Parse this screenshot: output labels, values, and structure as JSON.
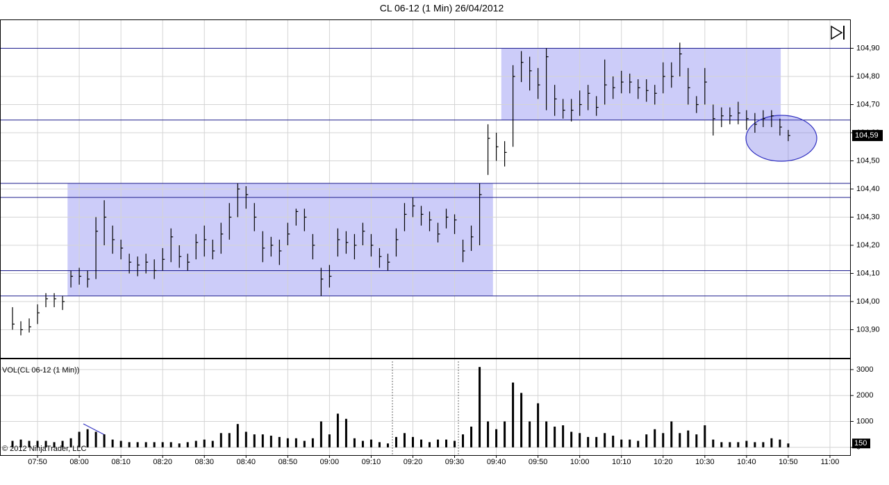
{
  "chart_data": [
    {
      "type": "ohlc",
      "title": "CL 06-12 (1 Min)  26/04/2012",
      "color": "#000000",
      "grid": true,
      "x": [
        464,
        466,
        468,
        470,
        472,
        474,
        476,
        478,
        480,
        482,
        484,
        486,
        488,
        490,
        492,
        494,
        496,
        498,
        500,
        502,
        504,
        506,
        508,
        510,
        512,
        514,
        516,
        518,
        520,
        522,
        524,
        526,
        528,
        530,
        532,
        534,
        536,
        538,
        540,
        542,
        544,
        546,
        548,
        550,
        552,
        554,
        556,
        558,
        560,
        562,
        564,
        566,
        568,
        570,
        572,
        574,
        576,
        578,
        580,
        582,
        584,
        586,
        588,
        590,
        592,
        594,
        596,
        598,
        600,
        602,
        604,
        606,
        608,
        610,
        612,
        614,
        616,
        618,
        620,
        622,
        624,
        626,
        628,
        630,
        632,
        634,
        636,
        638,
        640,
        642,
        644,
        646,
        648,
        650
      ],
      "high": [
        103.98,
        103.93,
        103.94,
        103.99,
        104.03,
        104.03,
        104.02,
        104.11,
        104.12,
        104.11,
        104.3,
        104.36,
        104.27,
        104.22,
        104.17,
        104.16,
        104.17,
        104.15,
        104.19,
        104.26,
        104.2,
        104.17,
        104.24,
        104.27,
        104.22,
        104.28,
        104.35,
        104.42,
        104.41,
        104.35,
        104.25,
        104.23,
        104.22,
        104.28,
        104.33,
        104.33,
        104.24,
        104.12,
        104.13,
        104.26,
        104.25,
        104.24,
        104.28,
        104.24,
        104.19,
        104.17,
        104.26,
        104.35,
        104.37,
        104.34,
        104.32,
        104.28,
        104.33,
        104.31,
        104.22,
        104.27,
        104.42,
        104.63,
        104.6,
        104.57,
        104.84,
        104.89,
        104.87,
        104.83,
        104.9,
        104.77,
        104.72,
        104.72,
        104.75,
        104.77,
        104.73,
        104.86,
        104.8,
        104.82,
        104.81,
        104.79,
        104.79,
        104.77,
        104.85,
        104.85,
        104.92,
        104.83,
        104.73,
        104.83,
        104.7,
        104.69,
        104.69,
        104.71,
        104.68,
        104.67,
        104.68,
        104.68,
        104.65,
        104.61
      ],
      "low": [
        103.9,
        103.88,
        103.89,
        103.92,
        103.98,
        103.98,
        103.97,
        104.05,
        104.06,
        104.05,
        104.08,
        104.2,
        104.17,
        104.15,
        104.1,
        104.09,
        104.1,
        104.08,
        104.11,
        104.14,
        104.12,
        104.11,
        104.15,
        104.16,
        104.15,
        104.17,
        104.22,
        104.3,
        104.33,
        104.25,
        104.14,
        104.16,
        104.13,
        104.2,
        104.27,
        104.25,
        104.15,
        104.02,
        104.05,
        104.16,
        104.17,
        104.15,
        104.2,
        104.16,
        104.12,
        104.11,
        104.16,
        104.25,
        104.3,
        104.27,
        104.25,
        104.21,
        104.26,
        104.24,
        104.14,
        104.18,
        104.2,
        104.45,
        104.5,
        104.48,
        104.55,
        104.78,
        104.75,
        104.72,
        104.68,
        104.66,
        104.65,
        104.64,
        104.66,
        104.68,
        104.66,
        104.7,
        104.72,
        104.74,
        104.74,
        104.72,
        104.71,
        104.7,
        104.74,
        104.76,
        104.8,
        104.7,
        104.67,
        104.7,
        104.59,
        104.62,
        104.63,
        104.63,
        104.61,
        104.6,
        104.62,
        104.62,
        104.59,
        104.57
      ],
      "close": [
        103.92,
        103.9,
        103.91,
        103.96,
        104.01,
        104.01,
        104.0,
        104.09,
        104.09,
        104.08,
        104.25,
        104.3,
        104.22,
        104.19,
        104.14,
        104.13,
        104.14,
        104.11,
        104.15,
        104.23,
        104.16,
        104.14,
        104.21,
        104.22,
        104.18,
        104.24,
        104.3,
        104.4,
        104.38,
        104.3,
        104.19,
        104.2,
        104.18,
        104.24,
        104.32,
        104.3,
        104.2,
        104.08,
        104.09,
        104.22,
        104.21,
        104.2,
        104.25,
        104.2,
        104.16,
        104.14,
        104.22,
        104.31,
        104.34,
        104.31,
        104.29,
        104.24,
        104.3,
        104.29,
        104.18,
        104.23,
        104.38,
        104.58,
        104.55,
        104.53,
        104.8,
        104.85,
        104.82,
        104.77,
        104.87,
        104.72,
        104.68,
        104.68,
        104.7,
        104.74,
        104.69,
        104.77,
        104.76,
        104.78,
        104.78,
        104.76,
        104.75,
        104.74,
        104.8,
        104.8,
        104.88,
        104.76,
        104.7,
        104.78,
        104.65,
        104.66,
        104.66,
        104.67,
        104.65,
        104.63,
        104.65,
        104.66,
        104.62,
        104.59
      ],
      "xlim": [
        461,
        665
      ],
      "xticks": [
        {
          "value": 470,
          "label": "07:50"
        },
        {
          "value": 480,
          "label": "08:00"
        },
        {
          "value": 490,
          "label": "08:10"
        },
        {
          "value": 500,
          "label": "08:20"
        },
        {
          "value": 510,
          "label": "08:30"
        },
        {
          "value": 520,
          "label": "08:40"
        },
        {
          "value": 530,
          "label": "08:50"
        },
        {
          "value": 540,
          "label": "09:00"
        },
        {
          "value": 550,
          "label": "09:10"
        },
        {
          "value": 560,
          "label": "09:20"
        },
        {
          "value": 570,
          "label": "09:30"
        },
        {
          "value": 580,
          "label": "09:40"
        },
        {
          "value": 590,
          "label": "09:50"
        },
        {
          "value": 600,
          "label": "10:00"
        },
        {
          "value": 610,
          "label": "10:10"
        },
        {
          "value": 620,
          "label": "10:20"
        },
        {
          "value": 630,
          "label": "10:30"
        },
        {
          "value": 640,
          "label": "10:40"
        },
        {
          "value": 650,
          "label": "10:50"
        },
        {
          "value": 660,
          "label": "11:00"
        }
      ],
      "ylim": [
        103.8,
        105.0
      ],
      "yticks": [
        {
          "value": 103.9,
          "label": "103,90"
        },
        {
          "value": 104.0,
          "label": "104,00"
        },
        {
          "value": 104.1,
          "label": "104,10"
        },
        {
          "value": 104.2,
          "label": "104,20"
        },
        {
          "value": 104.3,
          "label": "104,30"
        },
        {
          "value": 104.4,
          "label": "104,40"
        },
        {
          "value": 104.5,
          "label": "104,50"
        },
        {
          "value": 104.6,
          "label": "104,60"
        },
        {
          "value": 104.7,
          "label": "104,70"
        },
        {
          "value": 104.8,
          "label": "104,80"
        },
        {
          "value": 104.9,
          "label": "104,90"
        }
      ],
      "levels": [
        104.9,
        104.645,
        104.42,
        104.37,
        104.11,
        104.02
      ],
      "zones": [
        {
          "x": [
            477.2,
            579.2
          ],
          "y": [
            104.02,
            104.42
          ]
        },
        {
          "x": [
            581.2,
            648.2
          ],
          "y": [
            104.645,
            104.9
          ]
        }
      ],
      "last_price": {
        "value": 104.59,
        "label": "104,59"
      }
    },
    {
      "type": "bar",
      "title": "VOL(CL 06-12 (1 Min))",
      "color": "#000000",
      "credit": "© 2012 NinjaTrader, LLC",
      "values": [
        250,
        300,
        250,
        250,
        250,
        200,
        250,
        350,
        600,
        700,
        600,
        500,
        300,
        250,
        200,
        200,
        200,
        200,
        200,
        200,
        150,
        200,
        250,
        300,
        250,
        550,
        550,
        900,
        600,
        500,
        500,
        450,
        400,
        350,
        350,
        250,
        350,
        1000,
        500,
        1300,
        1100,
        350,
        250,
        300,
        200,
        150,
        400,
        550,
        400,
        300,
        200,
        300,
        300,
        250,
        500,
        800,
        3100,
        1000,
        700,
        1000,
        2500,
        2100,
        1000,
        1700,
        1000,
        800,
        850,
        600,
        550,
        400,
        400,
        550,
        450,
        300,
        300,
        250,
        500,
        700,
        550,
        1000,
        550,
        650,
        500,
        850,
        300,
        200,
        200,
        200,
        250,
        200,
        200,
        350,
        300,
        150
      ],
      "ylim": [
        -300,
        3400
      ],
      "yticks": [
        0,
        1000,
        2000,
        3000
      ],
      "last_value": 150
    }
  ]
}
